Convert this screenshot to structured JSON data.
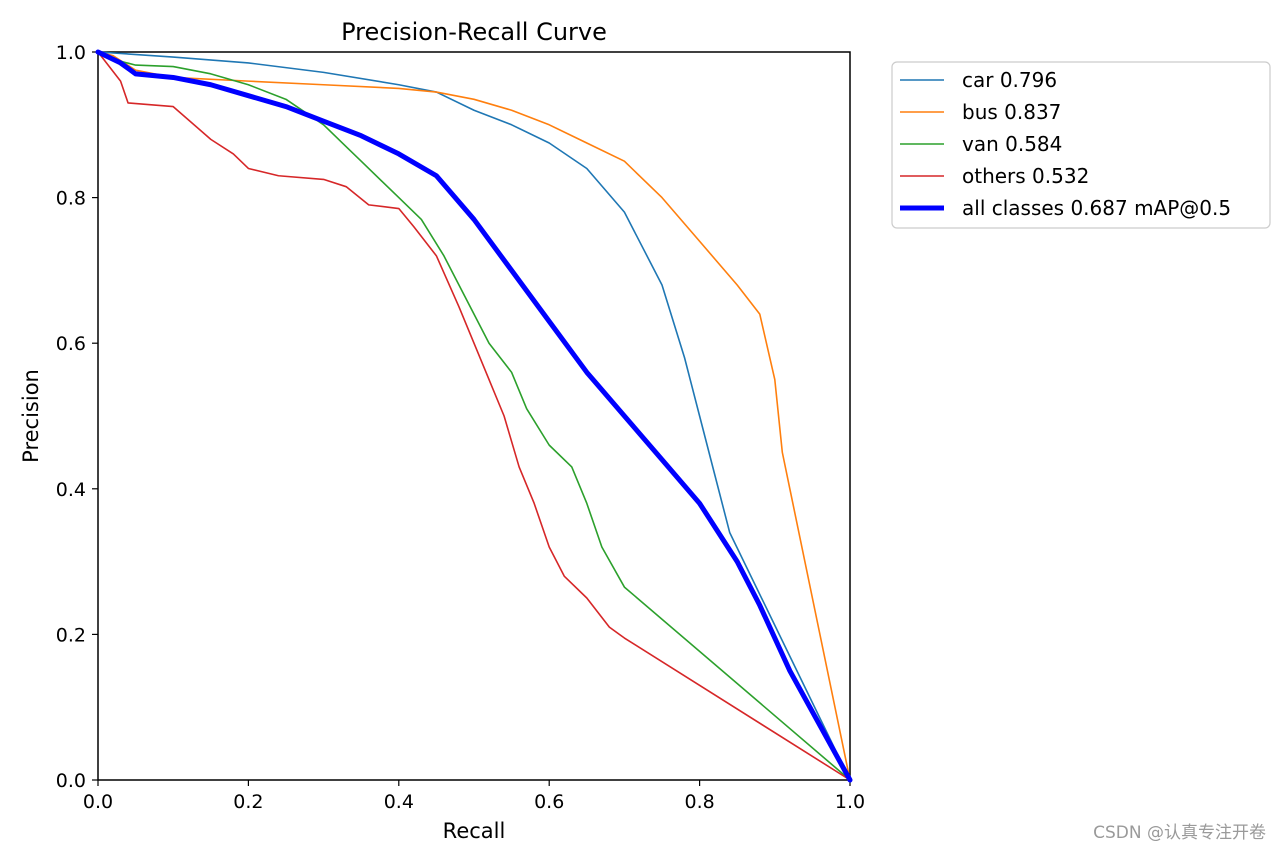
{
  "chart_data": {
    "type": "line",
    "title": "Precision-Recall Curve",
    "xlabel": "Recall",
    "ylabel": "Precision",
    "xlim": [
      0,
      1
    ],
    "ylim": [
      0,
      1
    ],
    "grid": false,
    "legend_position": "outside-top-right",
    "x_ticks": [
      "0.0",
      "0.2",
      "0.4",
      "0.6",
      "0.8",
      "1.0"
    ],
    "y_ticks": [
      "0.0",
      "0.2",
      "0.4",
      "0.6",
      "0.8",
      "1.0"
    ],
    "series": [
      {
        "name": "car 0.796",
        "color": "#1f77b4",
        "width": "thin",
        "points": [
          [
            0,
            1.0
          ],
          [
            0.03,
            0.998
          ],
          [
            0.1,
            0.993
          ],
          [
            0.2,
            0.985
          ],
          [
            0.3,
            0.972
          ],
          [
            0.4,
            0.955
          ],
          [
            0.45,
            0.945
          ],
          [
            0.5,
            0.92
          ],
          [
            0.55,
            0.9
          ],
          [
            0.6,
            0.875
          ],
          [
            0.65,
            0.84
          ],
          [
            0.7,
            0.78
          ],
          [
            0.75,
            0.68
          ],
          [
            0.78,
            0.58
          ],
          [
            0.8,
            0.5
          ],
          [
            0.82,
            0.42
          ],
          [
            0.84,
            0.34
          ],
          [
            1.0,
            0.0
          ]
        ]
      },
      {
        "name": "bus 0.837",
        "color": "#ff7f0e",
        "width": "thin",
        "points": [
          [
            0,
            1.0
          ],
          [
            0.02,
            0.995
          ],
          [
            0.05,
            0.975
          ],
          [
            0.1,
            0.965
          ],
          [
            0.2,
            0.96
          ],
          [
            0.3,
            0.955
          ],
          [
            0.4,
            0.95
          ],
          [
            0.45,
            0.945
          ],
          [
            0.5,
            0.935
          ],
          [
            0.55,
            0.92
          ],
          [
            0.6,
            0.9
          ],
          [
            0.65,
            0.875
          ],
          [
            0.7,
            0.85
          ],
          [
            0.75,
            0.8
          ],
          [
            0.8,
            0.74
          ],
          [
            0.85,
            0.68
          ],
          [
            0.88,
            0.64
          ],
          [
            0.9,
            0.55
          ],
          [
            0.91,
            0.45
          ],
          [
            0.92,
            0.4
          ],
          [
            1.0,
            0.0
          ]
        ]
      },
      {
        "name": "van 0.584",
        "color": "#2ca02c",
        "width": "thin",
        "points": [
          [
            0,
            1.0
          ],
          [
            0.02,
            0.99
          ],
          [
            0.05,
            0.982
          ],
          [
            0.1,
            0.98
          ],
          [
            0.15,
            0.97
          ],
          [
            0.2,
            0.955
          ],
          [
            0.25,
            0.935
          ],
          [
            0.3,
            0.9
          ],
          [
            0.33,
            0.87
          ],
          [
            0.35,
            0.85
          ],
          [
            0.4,
            0.8
          ],
          [
            0.43,
            0.77
          ],
          [
            0.46,
            0.72
          ],
          [
            0.48,
            0.68
          ],
          [
            0.5,
            0.64
          ],
          [
            0.52,
            0.6
          ],
          [
            0.55,
            0.56
          ],
          [
            0.57,
            0.51
          ],
          [
            0.6,
            0.46
          ],
          [
            0.63,
            0.43
          ],
          [
            0.65,
            0.38
          ],
          [
            0.67,
            0.32
          ],
          [
            0.7,
            0.265
          ],
          [
            1.0,
            0.0
          ]
        ]
      },
      {
        "name": "others 0.532",
        "color": "#d62728",
        "width": "thin",
        "points": [
          [
            0,
            1.0
          ],
          [
            0.03,
            0.96
          ],
          [
            0.04,
            0.93
          ],
          [
            0.1,
            0.925
          ],
          [
            0.15,
            0.88
          ],
          [
            0.18,
            0.86
          ],
          [
            0.2,
            0.84
          ],
          [
            0.24,
            0.83
          ],
          [
            0.3,
            0.825
          ],
          [
            0.33,
            0.815
          ],
          [
            0.36,
            0.79
          ],
          [
            0.4,
            0.785
          ],
          [
            0.42,
            0.76
          ],
          [
            0.45,
            0.72
          ],
          [
            0.48,
            0.65
          ],
          [
            0.5,
            0.6
          ],
          [
            0.52,
            0.55
          ],
          [
            0.54,
            0.5
          ],
          [
            0.56,
            0.43
          ],
          [
            0.58,
            0.38
          ],
          [
            0.6,
            0.32
          ],
          [
            0.62,
            0.28
          ],
          [
            0.65,
            0.25
          ],
          [
            0.68,
            0.21
          ],
          [
            0.7,
            0.195
          ],
          [
            1.0,
            0.0
          ]
        ]
      },
      {
        "name": "all classes 0.687 mAP@0.5",
        "color": "#0000ff",
        "width": "thick",
        "points": [
          [
            0,
            1.0
          ],
          [
            0.03,
            0.985
          ],
          [
            0.05,
            0.97
          ],
          [
            0.1,
            0.965
          ],
          [
            0.15,
            0.955
          ],
          [
            0.2,
            0.94
          ],
          [
            0.25,
            0.925
          ],
          [
            0.3,
            0.905
          ],
          [
            0.35,
            0.885
          ],
          [
            0.4,
            0.86
          ],
          [
            0.45,
            0.83
          ],
          [
            0.5,
            0.77
          ],
          [
            0.55,
            0.7
          ],
          [
            0.6,
            0.63
          ],
          [
            0.65,
            0.56
          ],
          [
            0.7,
            0.5
          ],
          [
            0.75,
            0.44
          ],
          [
            0.8,
            0.38
          ],
          [
            0.85,
            0.3
          ],
          [
            0.88,
            0.24
          ],
          [
            0.92,
            0.15
          ],
          [
            1.0,
            0.0
          ]
        ]
      }
    ]
  },
  "watermark": "CSDN @认真专注开卷"
}
